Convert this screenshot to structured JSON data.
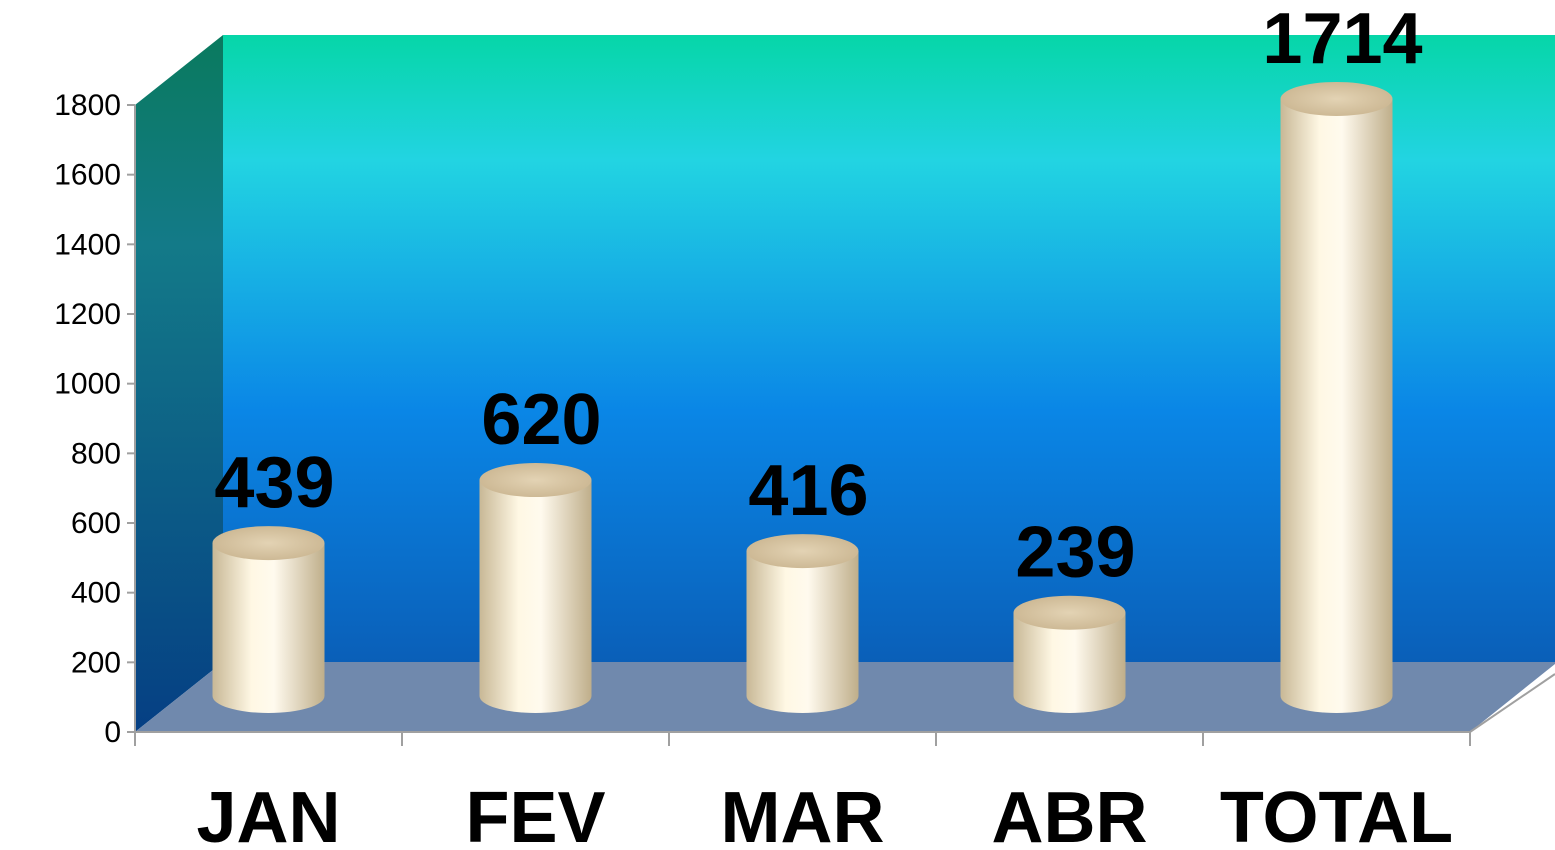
{
  "chart_data": {
    "type": "bar",
    "style": "3d-cylinder",
    "categories": [
      "JAN",
      "FEV",
      "MAR",
      "ABR",
      "TOTAL"
    ],
    "values": [
      439,
      620,
      416,
      239,
      1714
    ],
    "data_labels": [
      "439",
      "620",
      "416",
      "239",
      "1714"
    ],
    "yticks": [
      0,
      200,
      400,
      600,
      800,
      1000,
      1200,
      1400,
      1600,
      1800
    ],
    "ytick_labels": [
      "0",
      "200",
      "400",
      "600",
      "800",
      "1000",
      "1200",
      "1400",
      "1600",
      "1800"
    ],
    "ylim": [
      0,
      1800
    ],
    "grid": false,
    "legend": "none",
    "colors": {
      "back_wall_top": "#06d6a8",
      "back_wall_mid": "#22d4e2",
      "back_wall_low": "#0a86e6",
      "back_wall_bottom": "#0a5fb8",
      "side_wall_top": "#0a7a5e",
      "side_wall_bottom": "#053f84",
      "floor": "#7089ad",
      "bar_light": "#fff8e4",
      "bar_dark": "#c8b896",
      "bar_top": "#d9c6a3",
      "axis": "#a0a0a0"
    }
  }
}
